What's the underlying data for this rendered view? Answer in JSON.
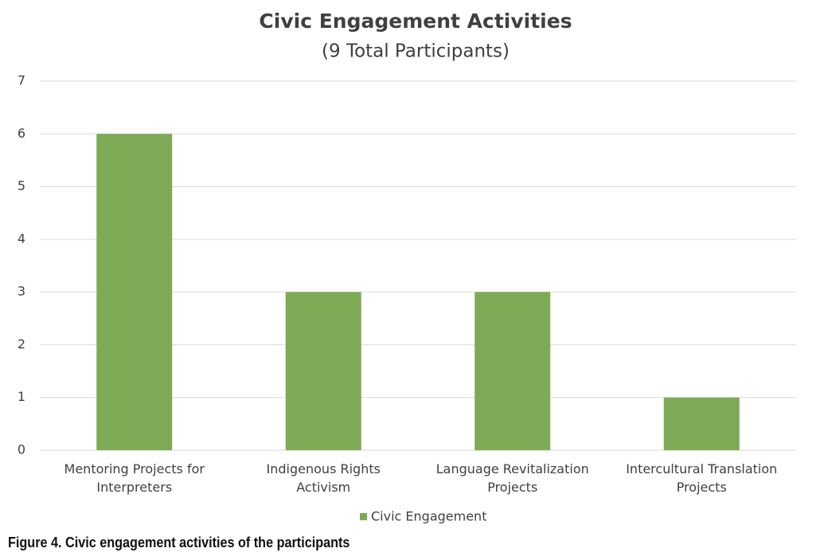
{
  "chart_data": {
    "type": "bar",
    "title": "Civic Engagement Activities",
    "subtitle": "(9 Total Participants)",
    "categories": [
      "Mentoring Projects for Interpreters",
      "Indigenous Rights Activism",
      "Language Revitalization Projects",
      "Intercultural Translation Projects"
    ],
    "series": [
      {
        "name": "Civic Engagement",
        "color": "#7faa55",
        "values": [
          6,
          3,
          3,
          1
        ]
      }
    ],
    "ylim": [
      0,
      7
    ],
    "yticks": [
      0,
      1,
      2,
      3,
      4,
      5,
      6,
      7
    ],
    "grid": true,
    "legend": "bottom"
  },
  "caption": "Figure 4. Civic engagement activities of the participants"
}
